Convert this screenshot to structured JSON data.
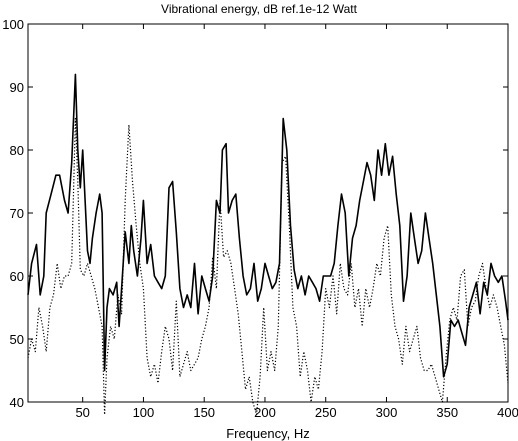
{
  "chart_data": {
    "type": "line",
    "title": "Vibrational energy, dB ref.1e-12 Watt",
    "xlabel": "Frequency, Hz",
    "ylabel": "",
    "xlim": [
      5,
      400
    ],
    "ylim": [
      40,
      100
    ],
    "xticks": [
      50,
      100,
      150,
      200,
      250,
      300,
      350,
      400
    ],
    "yticks": [
      40,
      50,
      60,
      70,
      80,
      90,
      100
    ],
    "grid": false,
    "legend": "none",
    "series": [
      {
        "style": "solid",
        "color": "#000000",
        "points": [
          [
            5,
            57
          ],
          [
            8,
            62
          ],
          [
            12,
            65
          ],
          [
            15,
            57
          ],
          [
            18,
            60
          ],
          [
            20,
            70
          ],
          [
            24,
            73
          ],
          [
            28,
            76
          ],
          [
            31,
            76
          ],
          [
            35,
            72
          ],
          [
            38,
            70
          ],
          [
            41,
            78
          ],
          [
            44,
            92
          ],
          [
            46,
            80
          ],
          [
            48,
            74
          ],
          [
            50,
            80
          ],
          [
            52,
            72
          ],
          [
            54,
            64
          ],
          [
            56,
            62
          ],
          [
            58,
            66
          ],
          [
            61,
            70
          ],
          [
            64,
            73
          ],
          [
            66,
            70
          ],
          [
            68,
            45
          ],
          [
            70,
            55
          ],
          [
            72,
            58
          ],
          [
            75,
            57
          ],
          [
            78,
            59
          ],
          [
            80,
            52
          ],
          [
            82,
            58
          ],
          [
            85,
            67
          ],
          [
            88,
            62
          ],
          [
            90,
            68
          ],
          [
            92,
            64
          ],
          [
            95,
            60
          ],
          [
            98,
            66
          ],
          [
            100,
            72
          ],
          [
            103,
            62
          ],
          [
            106,
            65
          ],
          [
            109,
            60
          ],
          [
            112,
            59
          ],
          [
            115,
            58
          ],
          [
            118,
            60
          ],
          [
            121,
            74
          ],
          [
            124,
            75
          ],
          [
            127,
            67
          ],
          [
            130,
            58
          ],
          [
            133,
            55
          ],
          [
            136,
            57
          ],
          [
            139,
            55
          ],
          [
            142,
            62
          ],
          [
            145,
            54
          ],
          [
            148,
            60
          ],
          [
            151,
            58
          ],
          [
            154,
            56
          ],
          [
            157,
            60
          ],
          [
            160,
            72
          ],
          [
            163,
            70
          ],
          [
            165,
            80
          ],
          [
            168,
            81
          ],
          [
            170,
            70
          ],
          [
            173,
            72
          ],
          [
            176,
            73
          ],
          [
            179,
            66
          ],
          [
            182,
            60
          ],
          [
            185,
            57
          ],
          [
            188,
            58
          ],
          [
            191,
            62
          ],
          [
            194,
            56
          ],
          [
            197,
            58
          ],
          [
            200,
            62
          ],
          [
            203,
            60
          ],
          [
            206,
            58
          ],
          [
            209,
            59
          ],
          [
            212,
            62
          ],
          [
            215,
            85
          ],
          [
            218,
            80
          ],
          [
            221,
            68
          ],
          [
            224,
            61
          ],
          [
            227,
            58
          ],
          [
            230,
            60
          ],
          [
            233,
            57
          ],
          [
            236,
            60
          ],
          [
            239,
            59
          ],
          [
            242,
            58
          ],
          [
            245,
            56
          ],
          [
            248,
            60
          ],
          [
            251,
            60
          ],
          [
            254,
            60
          ],
          [
            257,
            62
          ],
          [
            260,
            68
          ],
          [
            263,
            73
          ],
          [
            266,
            70
          ],
          [
            269,
            60
          ],
          [
            272,
            66
          ],
          [
            275,
            68
          ],
          [
            278,
            72
          ],
          [
            281,
            75
          ],
          [
            284,
            78
          ],
          [
            287,
            76
          ],
          [
            290,
            72
          ],
          [
            293,
            80
          ],
          [
            296,
            76
          ],
          [
            299,
            81
          ],
          [
            302,
            76
          ],
          [
            305,
            79
          ],
          [
            308,
            73
          ],
          [
            311,
            68
          ],
          [
            314,
            56
          ],
          [
            317,
            60
          ],
          [
            320,
            70
          ],
          [
            323,
            66
          ],
          [
            326,
            62
          ],
          [
            329,
            64
          ],
          [
            332,
            70
          ],
          [
            335,
            66
          ],
          [
            338,
            62
          ],
          [
            341,
            57
          ],
          [
            344,
            52
          ],
          [
            347,
            44
          ],
          [
            350,
            46
          ],
          [
            353,
            53
          ],
          [
            356,
            52
          ],
          [
            359,
            53
          ],
          [
            362,
            51
          ],
          [
            365,
            49
          ],
          [
            368,
            55
          ],
          [
            371,
            57
          ],
          [
            374,
            59
          ],
          [
            377,
            54
          ],
          [
            380,
            59
          ],
          [
            383,
            57
          ],
          [
            386,
            62
          ],
          [
            389,
            60
          ],
          [
            392,
            59
          ],
          [
            395,
            60
          ],
          [
            398,
            56
          ],
          [
            400,
            53
          ]
        ]
      },
      {
        "style": "dotted",
        "color": "#000000",
        "points": [
          [
            5,
            47
          ],
          [
            8,
            50
          ],
          [
            11,
            48
          ],
          [
            14,
            55
          ],
          [
            17,
            52
          ],
          [
            20,
            48
          ],
          [
            23,
            55
          ],
          [
            26,
            57
          ],
          [
            29,
            62
          ],
          [
            32,
            58
          ],
          [
            35,
            60
          ],
          [
            38,
            60
          ],
          [
            41,
            62
          ],
          [
            44,
            85
          ],
          [
            46,
            75
          ],
          [
            48,
            61
          ],
          [
            51,
            60
          ],
          [
            54,
            62
          ],
          [
            57,
            60
          ],
          [
            60,
            58
          ],
          [
            63,
            55
          ],
          [
            66,
            52
          ],
          [
            68,
            38
          ],
          [
            70,
            47
          ],
          [
            73,
            52
          ],
          [
            76,
            50
          ],
          [
            79,
            57
          ],
          [
            82,
            54
          ],
          [
            85,
            72
          ],
          [
            88,
            84
          ],
          [
            91,
            75
          ],
          [
            94,
            68
          ],
          [
            97,
            62
          ],
          [
            100,
            58
          ],
          [
            103,
            47
          ],
          [
            106,
            44
          ],
          [
            109,
            46
          ],
          [
            112,
            43
          ],
          [
            115,
            48
          ],
          [
            118,
            52
          ],
          [
            121,
            50
          ],
          [
            124,
            45
          ],
          [
            127,
            56
          ],
          [
            130,
            44
          ],
          [
            133,
            46
          ],
          [
            136,
            48
          ],
          [
            139,
            45
          ],
          [
            142,
            46
          ],
          [
            145,
            47
          ],
          [
            148,
            50
          ],
          [
            151,
            52
          ],
          [
            154,
            55
          ],
          [
            157,
            63
          ],
          [
            160,
            58
          ],
          [
            163,
            72
          ],
          [
            166,
            63
          ],
          [
            169,
            64
          ],
          [
            172,
            62
          ],
          [
            175,
            58
          ],
          [
            178,
            54
          ],
          [
            181,
            48
          ],
          [
            184,
            42
          ],
          [
            187,
            44
          ],
          [
            190,
            40
          ],
          [
            193,
            38
          ],
          [
            196,
            44
          ],
          [
            199,
            55
          ],
          [
            202,
            45
          ],
          [
            205,
            48
          ],
          [
            208,
            45
          ],
          [
            211,
            52
          ],
          [
            214,
            78
          ],
          [
            217,
            79
          ],
          [
            220,
            68
          ],
          [
            223,
            55
          ],
          [
            226,
            52
          ],
          [
            229,
            44
          ],
          [
            232,
            48
          ],
          [
            235,
            45
          ],
          [
            238,
            40
          ],
          [
            241,
            44
          ],
          [
            244,
            42
          ],
          [
            247,
            48
          ],
          [
            250,
            58
          ],
          [
            253,
            55
          ],
          [
            256,
            60
          ],
          [
            259,
            54
          ],
          [
            262,
            62
          ],
          [
            265,
            58
          ],
          [
            268,
            57
          ],
          [
            271,
            62
          ],
          [
            274,
            55
          ],
          [
            277,
            58
          ],
          [
            280,
            52
          ],
          [
            283,
            58
          ],
          [
            286,
            55
          ],
          [
            289,
            58
          ],
          [
            292,
            62
          ],
          [
            295,
            60
          ],
          [
            298,
            66
          ],
          [
            301,
            68
          ],
          [
            304,
            57
          ],
          [
            307,
            52
          ],
          [
            310,
            50
          ],
          [
            313,
            46
          ],
          [
            316,
            52
          ],
          [
            319,
            48
          ],
          [
            322,
            50
          ],
          [
            325,
            52
          ],
          [
            328,
            47
          ],
          [
            331,
            45
          ],
          [
            334,
            45
          ],
          [
            337,
            46
          ],
          [
            340,
            44
          ],
          [
            343,
            42
          ],
          [
            346,
            40
          ],
          [
            349,
            47
          ],
          [
            352,
            53
          ],
          [
            355,
            55
          ],
          [
            358,
            53
          ],
          [
            361,
            60
          ],
          [
            364,
            61
          ],
          [
            367,
            52
          ],
          [
            370,
            55
          ],
          [
            373,
            56
          ],
          [
            376,
            60
          ],
          [
            379,
            62
          ],
          [
            382,
            58
          ],
          [
            385,
            55
          ],
          [
            388,
            57
          ],
          [
            391,
            55
          ],
          [
            394,
            52
          ],
          [
            397,
            49
          ],
          [
            400,
            43
          ]
        ]
      }
    ]
  }
}
